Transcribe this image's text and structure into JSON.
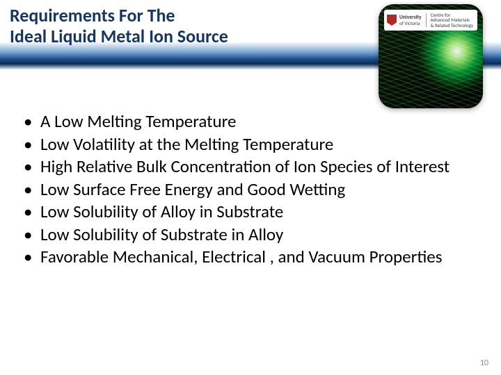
{
  "header": {
    "title_line1": "Requirements For The",
    "title_line2": "Ideal Liquid Metal Ion Source"
  },
  "logo": {
    "uni_line1": "University",
    "uni_line2": "of Victoria",
    "centre_line1": "Centre for",
    "centre_line2": "Advanced Materials",
    "centre_line3": "& Related Technology"
  },
  "bullets": [
    "A Low Melting Temperature",
    "Low Volatility at the Melting Temperature",
    "High Relative Bulk Concentration of Ion Species of Interest",
    "Low Surface Free Energy and Good Wetting",
    "Low Solubility of Alloy in Substrate",
    "Low Solubility of Substrate in Alloy",
    "Favorable Mechanical, Electrical , and Vacuum Properties"
  ],
  "page_number": "10",
  "colors": {
    "title_color": "#17365d",
    "body_text": "#000000",
    "page_num_color": "#8a8a8a"
  }
}
